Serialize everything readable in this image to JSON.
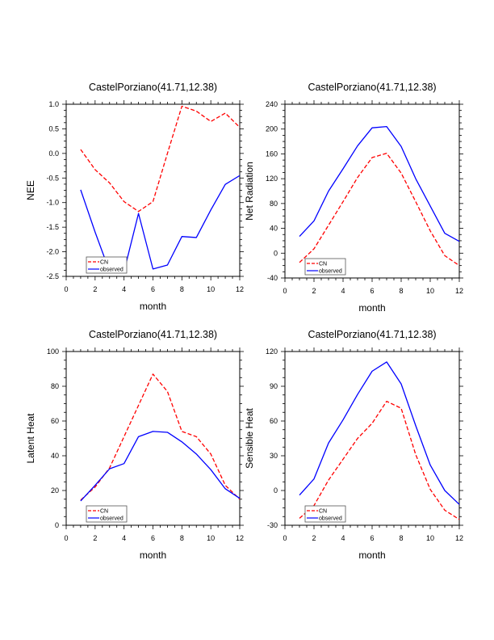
{
  "colors": {
    "cn": "#ff0000",
    "observed": "#0000ff",
    "axis": "#000000"
  },
  "chart_data": [
    {
      "type": "line",
      "title": "CastelPorziano(41.71,12.38)",
      "xlabel": "month",
      "ylabel": "NEE",
      "xlim": [
        0,
        12
      ],
      "ylim": [
        -2.5,
        1.0
      ],
      "xticks": [
        "0",
        "2",
        "4",
        "6",
        "8",
        "10",
        "12"
      ],
      "yticks": [
        "-2.5",
        "-2.0",
        "-1.5",
        "-1.0",
        "-0.5",
        "0.0",
        "0.5",
        "1.0"
      ],
      "x": [
        1,
        2,
        3,
        4,
        5,
        6,
        7,
        8,
        9,
        10,
        11,
        12
      ],
      "legend_position": "bottom-left",
      "series": [
        {
          "name": "CN",
          "style": "dashed",
          "values": [
            0.08,
            -0.33,
            -0.6,
            -0.98,
            -1.18,
            -0.98,
            0.0,
            0.96,
            0.86,
            0.65,
            0.82,
            0.53
          ]
        },
        {
          "name": "observed",
          "style": "solid",
          "values": [
            -0.74,
            -1.6,
            -2.4,
            -2.4,
            -1.22,
            -2.35,
            -2.27,
            -1.69,
            -1.71,
            -1.15,
            -0.63,
            -0.45
          ]
        }
      ]
    },
    {
      "type": "line",
      "title": "CastelPorziano(41.71,12.38)",
      "xlabel": "month",
      "ylabel": "Net Radiation",
      "xlim": [
        0,
        12
      ],
      "ylim": [
        -40,
        240
      ],
      "xticks": [
        "0",
        "2",
        "4",
        "6",
        "8",
        "10",
        "12"
      ],
      "yticks": [
        "-40",
        "0",
        "40",
        "80",
        "120",
        "160",
        "200",
        "240"
      ],
      "x": [
        1,
        2,
        3,
        4,
        5,
        6,
        7,
        8,
        9,
        10,
        11,
        12
      ],
      "legend_position": "bottom-left",
      "series": [
        {
          "name": "CN",
          "style": "dashed",
          "values": [
            -15,
            7,
            45,
            83,
            122,
            154,
            161,
            129,
            83,
            36,
            -4,
            -20
          ]
        },
        {
          "name": "observed",
          "style": "solid",
          "values": [
            27,
            52,
            100,
            136,
            173,
            202,
            204,
            172,
            120,
            76,
            32,
            19
          ]
        }
      ]
    },
    {
      "type": "line",
      "title": "CastelPorziano(41.71,12.38)",
      "xlabel": "month",
      "ylabel": "Latent Heat",
      "xlim": [
        0,
        12
      ],
      "ylim": [
        0,
        100
      ],
      "xticks": [
        "0",
        "2",
        "4",
        "6",
        "8",
        "10",
        "12"
      ],
      "yticks": [
        "0",
        "20",
        "40",
        "60",
        "80",
        "100"
      ],
      "x": [
        1,
        2,
        3,
        4,
        5,
        6,
        7,
        8,
        9,
        10,
        11,
        12
      ],
      "legend_position": "bottom-left",
      "series": [
        {
          "name": "CN",
          "style": "dashed",
          "values": [
            14.5,
            22,
            33,
            51,
            69,
            87,
            77,
            54,
            51,
            41,
            23,
            15
          ]
        },
        {
          "name": "observed",
          "style": "solid",
          "values": [
            14,
            23,
            32.5,
            35.5,
            51,
            54,
            53.5,
            48,
            41,
            32,
            21,
            15.5
          ]
        }
      ]
    },
    {
      "type": "line",
      "title": "CastelPorziano(41.71,12.38)",
      "xlabel": "month",
      "ylabel": "Sensible Heat",
      "xlim": [
        0,
        12
      ],
      "ylim": [
        -30,
        120
      ],
      "xticks": [
        "0",
        "2",
        "4",
        "6",
        "8",
        "10",
        "12"
      ],
      "yticks": [
        "-30",
        "0",
        "30",
        "60",
        "90",
        "120"
      ],
      "x": [
        1,
        2,
        3,
        4,
        5,
        6,
        7,
        8,
        9,
        10,
        11,
        12
      ],
      "legend_position": "bottom-left",
      "series": [
        {
          "name": "CN",
          "style": "dashed",
          "values": [
            -24,
            -13,
            9,
            27,
            45,
            58,
            77,
            71,
            31,
            1,
            -17,
            -25
          ]
        },
        {
          "name": "observed",
          "style": "solid",
          "values": [
            -4,
            10,
            41,
            61,
            83,
            103,
            111,
            92,
            56,
            22,
            0,
            -12
          ]
        }
      ]
    }
  ]
}
